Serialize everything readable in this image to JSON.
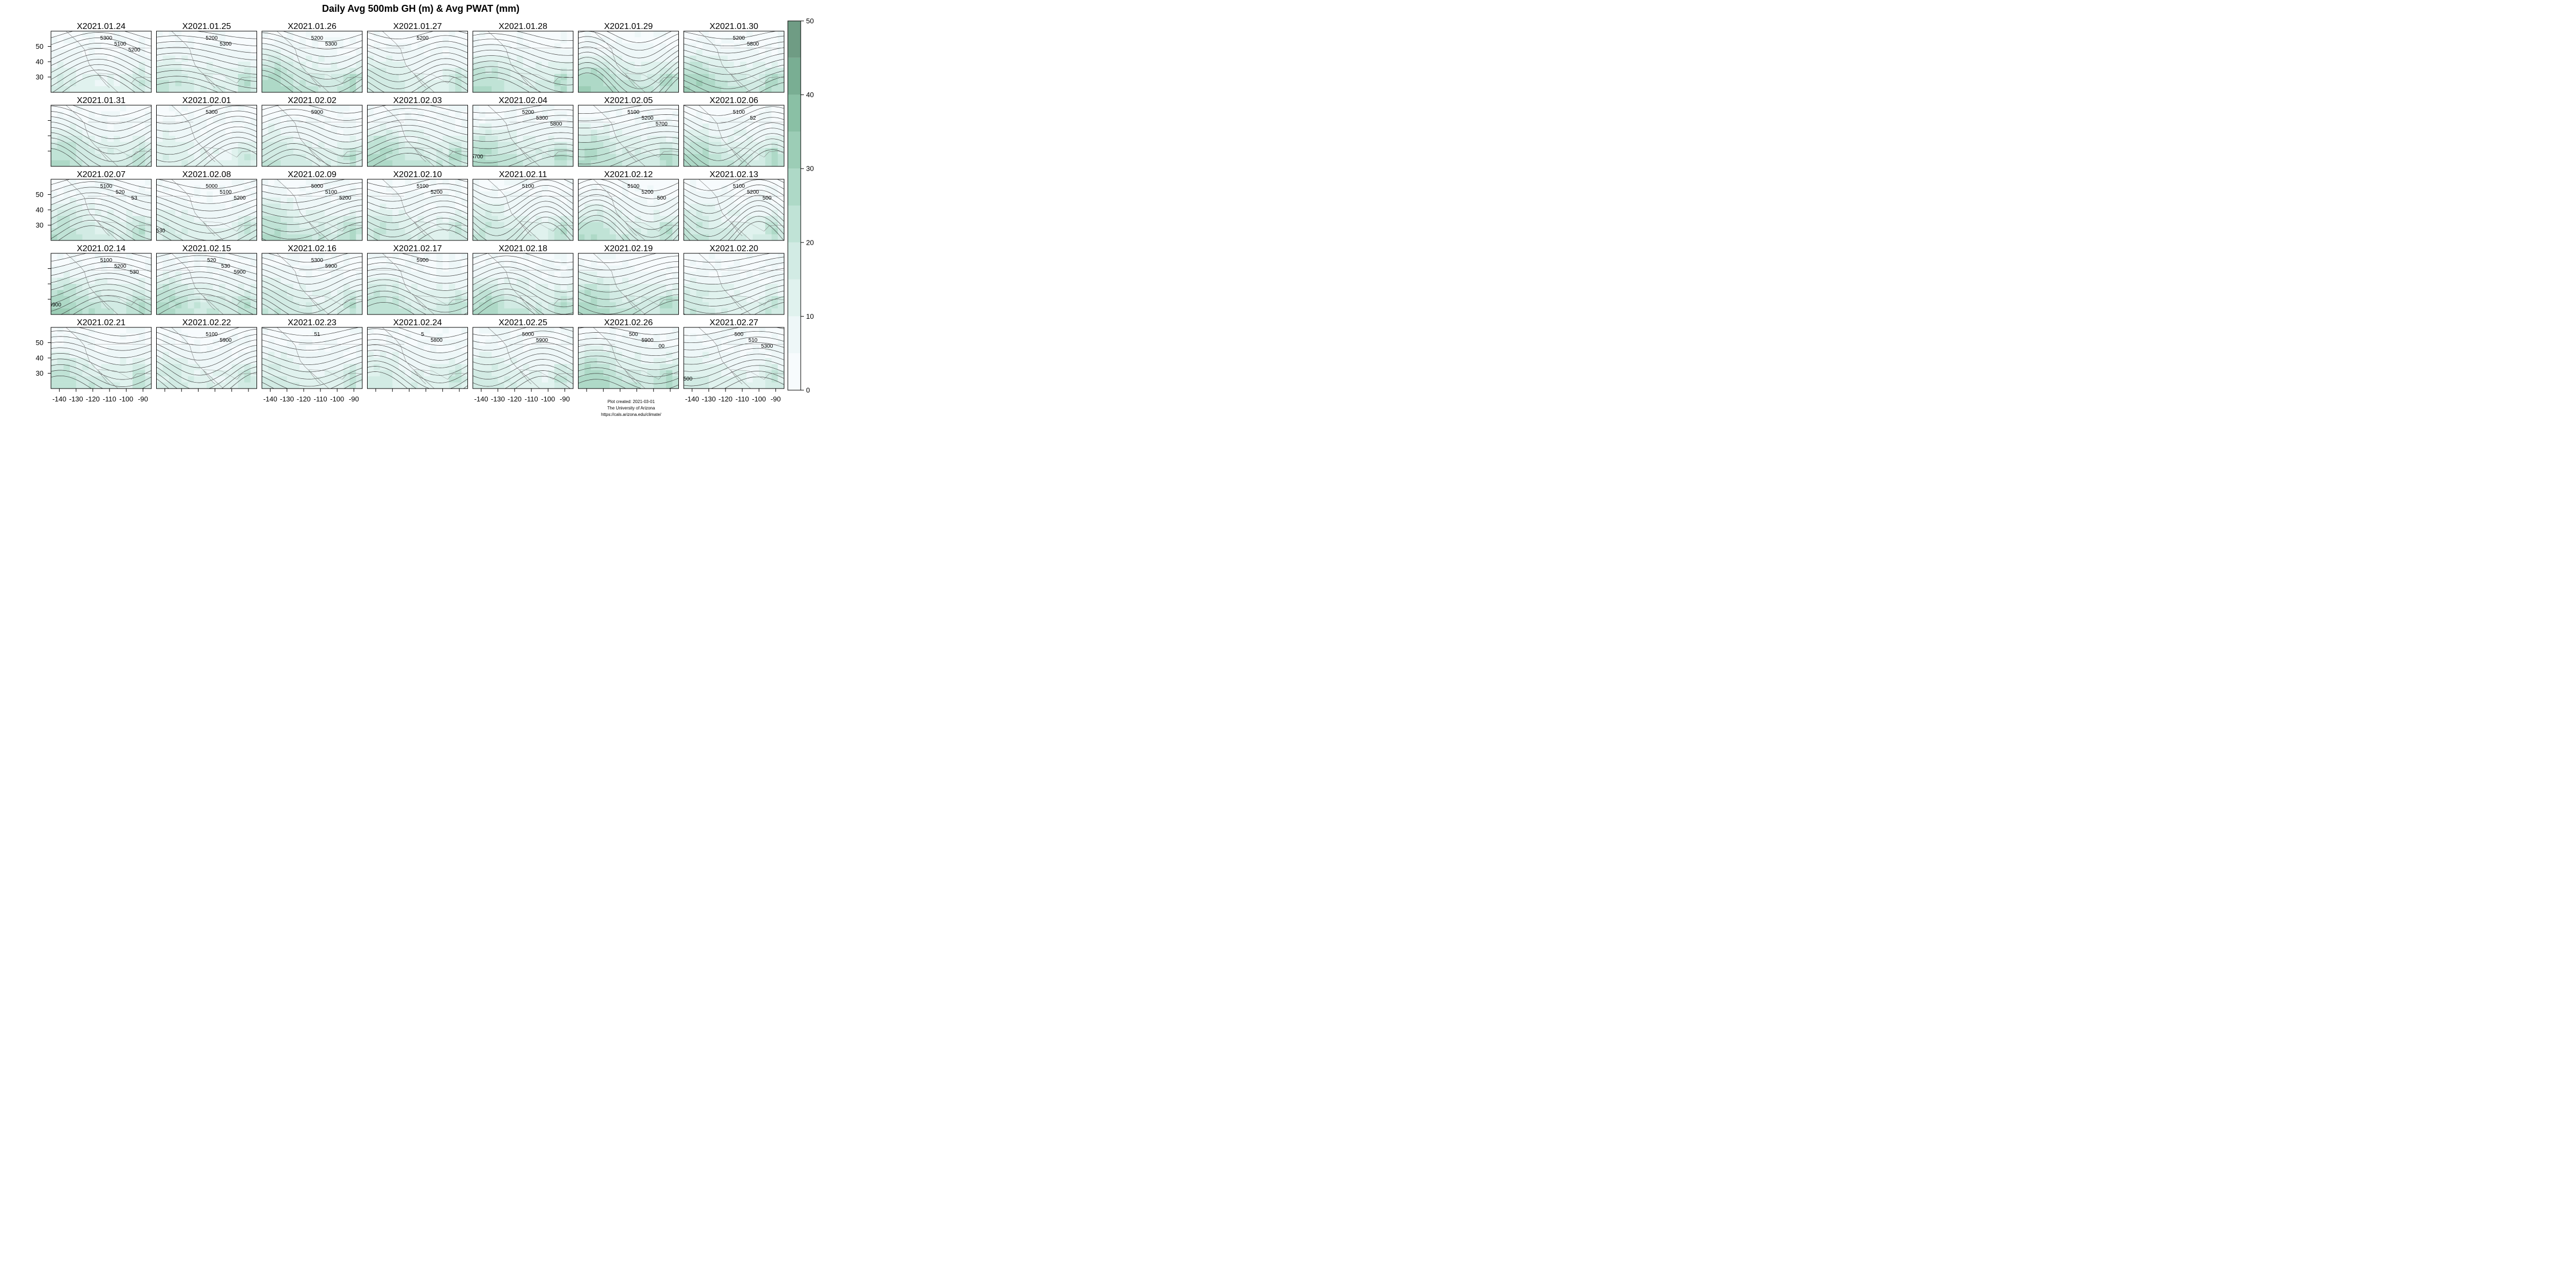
{
  "chart_data": {
    "type": "heatmap",
    "title": "Daily Avg 500mb GH (m) & Avg PWAT (mm)",
    "panels": [
      {
        "label": "X2021.01.24",
        "contour_labels": [
          "5300",
          "5100",
          "5200"
        ]
      },
      {
        "label": "X2021.01.25",
        "contour_labels": [
          "5200",
          "5300"
        ]
      },
      {
        "label": "X2021.01.26",
        "contour_labels": [
          "5200",
          "5300"
        ]
      },
      {
        "label": "X2021.01.27",
        "contour_labels": [
          "5200"
        ]
      },
      {
        "label": "X2021.01.28",
        "contour_labels": []
      },
      {
        "label": "X2021.01.29",
        "contour_labels": []
      },
      {
        "label": "X2021.01.30",
        "contour_labels": [
          "5200",
          "5800"
        ]
      },
      {
        "label": "X2021.01.31",
        "contour_labels": []
      },
      {
        "label": "X2021.02.01",
        "contour_labels": [
          "5300"
        ]
      },
      {
        "label": "X2021.02.02",
        "contour_labels": [
          "5900"
        ]
      },
      {
        "label": "X2021.02.03",
        "contour_labels": []
      },
      {
        "label": "X2021.02.04",
        "contour_labels": [
          "5200",
          "5300",
          "5800",
          "5700"
        ]
      },
      {
        "label": "X2021.02.05",
        "contour_labels": [
          "5100",
          "5200",
          "5700"
        ]
      },
      {
        "label": "X2021.02.06",
        "contour_labels": [
          "5100",
          "52"
        ]
      },
      {
        "label": "X2021.02.07",
        "contour_labels": [
          "5100",
          "520",
          "53"
        ]
      },
      {
        "label": "X2021.02.08",
        "contour_labels": [
          "5000",
          "5100",
          "5200",
          "530"
        ]
      },
      {
        "label": "X2021.02.09",
        "contour_labels": [
          "5000",
          "5100",
          "5200"
        ]
      },
      {
        "label": "X2021.02.10",
        "contour_labels": [
          "5100",
          "5200"
        ]
      },
      {
        "label": "X2021.02.11",
        "contour_labels": [
          "5100"
        ]
      },
      {
        "label": "X2021.02.12",
        "contour_labels": [
          "5100",
          "5200",
          "500"
        ]
      },
      {
        "label": "X2021.02.13",
        "contour_labels": [
          "5100",
          "5200",
          "500"
        ]
      },
      {
        "label": "X2021.02.14",
        "contour_labels": [
          "5100",
          "5200",
          "530",
          "5900"
        ]
      },
      {
        "label": "X2021.02.15",
        "contour_labels": [
          "520",
          "530",
          "5900"
        ]
      },
      {
        "label": "X2021.02.16",
        "contour_labels": [
          "5300",
          "5900"
        ]
      },
      {
        "label": "X2021.02.17",
        "contour_labels": [
          "5900"
        ]
      },
      {
        "label": "X2021.02.18",
        "contour_labels": []
      },
      {
        "label": "X2021.02.19",
        "contour_labels": []
      },
      {
        "label": "X2021.02.20",
        "contour_labels": []
      },
      {
        "label": "X2021.02.21",
        "contour_labels": []
      },
      {
        "label": "X2021.02.22",
        "contour_labels": [
          "5100",
          "5900"
        ]
      },
      {
        "label": "X2021.02.23",
        "contour_labels": [
          "51"
        ]
      },
      {
        "label": "X2021.02.24",
        "contour_labels": [
          "5",
          "5800"
        ]
      },
      {
        "label": "X2021.02.25",
        "contour_labels": [
          "5000",
          "5900"
        ]
      },
      {
        "label": "X2021.02.26",
        "contour_labels": [
          "500",
          "5900",
          "00"
        ]
      },
      {
        "label": "X2021.02.27",
        "contour_labels": [
          "500",
          "510",
          "5300",
          "500"
        ]
      }
    ],
    "x_ticks": [
      -140,
      -130,
      -120,
      -110,
      -100,
      -90
    ],
    "xlim": [
      -145,
      -85
    ],
    "x_tick_label_columns": [
      0,
      2,
      4,
      6
    ],
    "y_ticks": [
      30,
      40,
      50
    ],
    "ylim": [
      20,
      60
    ],
    "y_tick_label_rows": [
      0,
      2,
      4
    ],
    "colorbar": {
      "min": 0,
      "max": 50,
      "tick_labels": [
        0,
        10,
        20,
        30,
        40,
        50
      ],
      "levels": [
        {
          "lo": 0,
          "hi": 5,
          "color": "#f7fbfd"
        },
        {
          "lo": 5,
          "hi": 10,
          "color": "#eef7f8"
        },
        {
          "lo": 10,
          "hi": 15,
          "color": "#e0f2ee"
        },
        {
          "lo": 15,
          "hi": 20,
          "color": "#d2ebe4"
        },
        {
          "lo": 20,
          "hi": 25,
          "color": "#c0e3d6"
        },
        {
          "lo": 25,
          "hi": 30,
          "color": "#aed9c7"
        },
        {
          "lo": 30,
          "hi": 35,
          "color": "#9ccdb6"
        },
        {
          "lo": 35,
          "hi": 40,
          "color": "#8ac0a5"
        },
        {
          "lo": 40,
          "hi": 45,
          "color": "#79ae93"
        },
        {
          "lo": 45,
          "hi": 50,
          "color": "#6f9c84"
        }
      ]
    },
    "legend_position": "right",
    "grid": false
  },
  "credit": {
    "line1": "Plot created: 2021-03-01",
    "line2": "The University of Arizona",
    "line3": "https://cals.arizona.edu/climate/"
  }
}
